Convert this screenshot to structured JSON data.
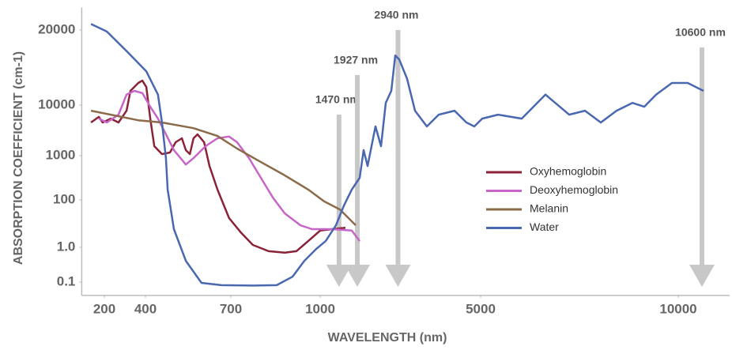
{
  "chart_data": {
    "type": "line",
    "xlabel": "WAVELENGTH (nm)",
    "ylabel": "ABSORPTION COEFFICIENT (cm-1)",
    "xlim": [
      90,
      11300
    ],
    "xticks": [
      200,
      400,
      700,
      1000,
      5000,
      10000
    ],
    "ylim": [
      0,
      23000
    ],
    "yticks": [
      0.1,
      {
        "value": 1,
        "label": "1.0"
      },
      100,
      1000,
      10000,
      20000
    ],
    "series": [
      {
        "name": "Oxyhemoglobin",
        "color": "#8b2338",
        "x": [
          135,
          173,
          192,
          231,
          269,
          308,
          327,
          365,
          385,
          403,
          417,
          431,
          458,
          486,
          506,
          528,
          542,
          556,
          569,
          583,
          606,
          625,
          653,
          694,
          735,
          774,
          827,
          881,
          920,
          960,
          1000,
          1296,
          1630
        ],
        "values": [
          6900,
          7900,
          6900,
          7600,
          6900,
          9000,
          11900,
          12950,
          13260,
          12400,
          7600,
          2690,
          1280,
          1560,
          3390,
          4100,
          1980,
          1280,
          4100,
          4800,
          3390,
          790,
          310,
          62,
          31,
          6,
          0.9,
          0.86,
          0.9,
          14,
          36,
          39,
          42
        ]
      },
      {
        "name": "Deoxyhemoglobin",
        "color": "#c865c8",
        "x": [
          173,
          212,
          269,
          308,
          346,
          385,
          417,
          444,
          472,
          500,
          542,
          569,
          611,
          653,
          694,
          721,
          761,
          801,
          841,
          881,
          934,
          973,
          1296,
          1788,
          1985
        ],
        "values": [
          7600,
          6900,
          8300,
          11400,
          11900,
          11600,
          9700,
          7600,
          4800,
          1980,
          820,
          950,
          2690,
          4100,
          4400,
          3390,
          950,
          550,
          150,
          72,
          47,
          39,
          39,
          36,
          14
        ]
      },
      {
        "name": "Melanin",
        "color": "#8b6b4a",
        "x": [
          135,
          231,
          365,
          458,
          569,
          653,
          721,
          801,
          881,
          960,
          1099,
          1493,
          1887
        ],
        "values": [
          9000,
          8300,
          7300,
          6900,
          5900,
          4500,
          2270,
          870,
          600,
          310,
          97,
          80,
          47
        ]
      },
      {
        "name": "Water",
        "color": "#4a68b0",
        "x": [
          135,
          212,
          308,
          403,
          444,
          458,
          472,
          478,
          500,
          542,
          597,
          667,
          774,
          854,
          907,
          947,
          987,
          1138,
          1394,
          1591,
          1788,
          1985,
          2084,
          2182,
          2281,
          2379,
          2517,
          2635,
          2773,
          2872,
          2970,
          3167,
          3364,
          3660,
          3955,
          4349,
          4645,
          4842,
          5040,
          5440,
          6040,
          6640,
          7240,
          7640,
          8040,
          8440,
          8840,
          9140,
          9440,
          9840,
          10240,
          10640
        ],
        "values": [
          20800,
          19800,
          17200,
          14500,
          11400,
          6900,
          950,
          310,
          39,
          0.65,
          0.08,
          0.02,
          0.01,
          0.02,
          0.24,
          0.65,
          0.96,
          14,
          47,
          88,
          310,
          550,
          1980,
          790,
          2690,
          6200,
          2690,
          10300,
          11900,
          16600,
          16100,
          13500,
          9000,
          6200,
          8300,
          9000,
          6900,
          6200,
          7600,
          8300,
          7600,
          11400,
          8300,
          9000,
          6900,
          9000,
          10300,
          9700,
          11400,
          12950,
          12950,
          11900
        ]
      }
    ],
    "annotations": [
      {
        "label": "1470 nm",
        "x": 1470
      },
      {
        "label": "1927 nm",
        "x": 1927
      },
      {
        "label": "2940 nm",
        "x": 2940
      },
      {
        "label": "10600 nm",
        "x": 10600
      }
    ]
  }
}
